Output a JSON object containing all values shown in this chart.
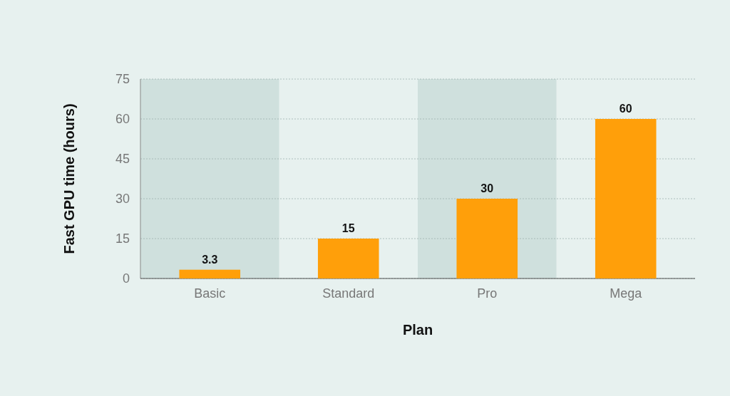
{
  "chart_data": {
    "type": "bar",
    "xlabel": "Plan",
    "ylabel": "Fast GPU time (hours)",
    "categories": [
      "Basic",
      "Standard",
      "Pro",
      "Mega"
    ],
    "values": [
      3.3,
      15,
      30,
      60
    ],
    "color": "#ff9f0a",
    "ylim": [
      0,
      75
    ],
    "yticks": [
      0,
      15,
      30,
      45,
      60,
      75
    ],
    "grid": "y",
    "data_labels": true
  }
}
